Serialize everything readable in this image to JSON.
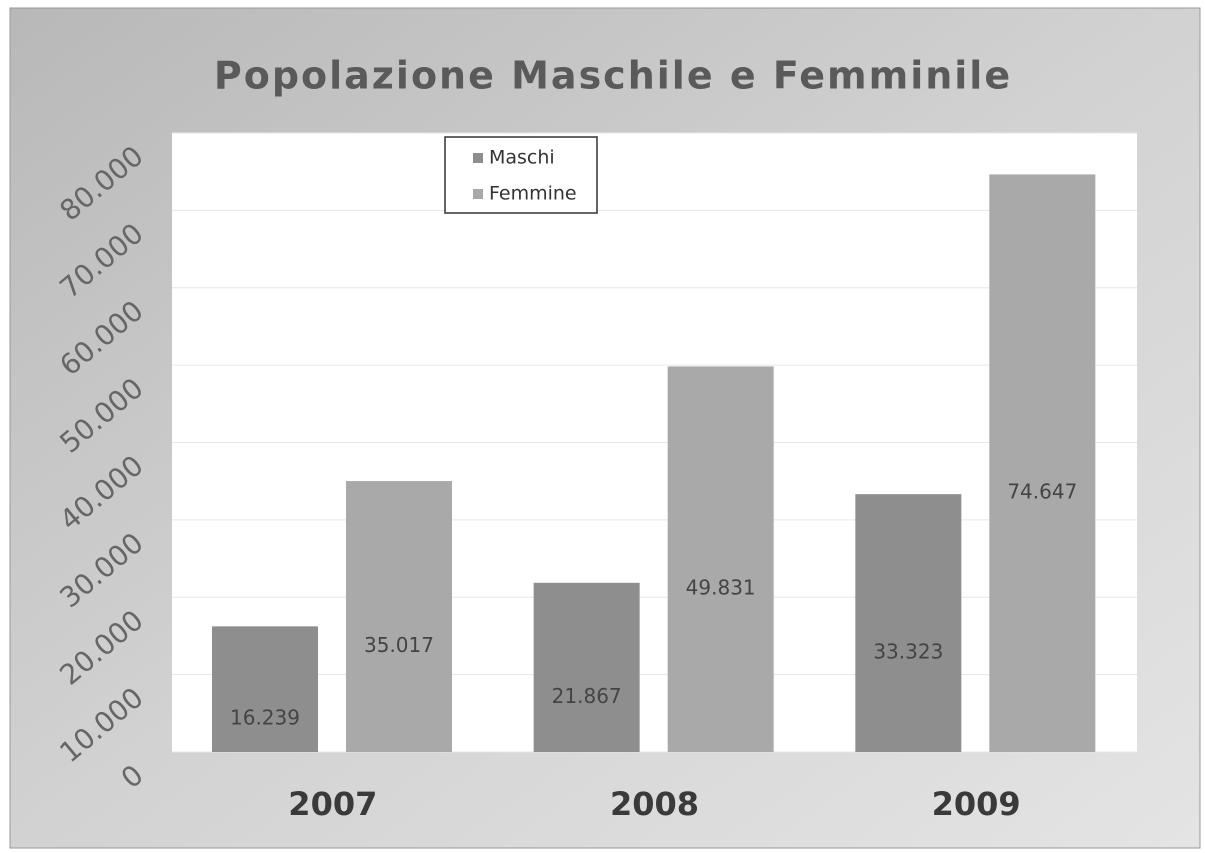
{
  "chart_data": {
    "type": "bar",
    "title": "Popolazione Maschile e Femminile",
    "categories": [
      "2007",
      "2008",
      "2009"
    ],
    "series": [
      {
        "name": "Maschi",
        "color": "#8e8e8e",
        "values": [
          16239,
          21867,
          33323
        ],
        "value_labels": [
          "16.239",
          "21.867",
          "33.323"
        ]
      },
      {
        "name": "Femmine",
        "color": "#a9a9a9",
        "values": [
          35017,
          49831,
          74647
        ],
        "value_labels": [
          "35.017",
          "49.831",
          "74.647"
        ]
      }
    ],
    "ylim": [
      0,
      80000
    ],
    "yticks": [
      0,
      {
        "value": 10000,
        "label": "10.000"
      },
      {
        "value": 20000,
        "label": "20.000"
      },
      {
        "value": 30000,
        "label": "30.000"
      },
      {
        "value": 40000,
        "label": "40.000"
      },
      {
        "value": 50000,
        "label": "50.000"
      },
      {
        "value": 60000,
        "label": "60.000"
      },
      {
        "value": 70000,
        "label": "70.000"
      },
      {
        "value": 80000,
        "label": "80.000"
      }
    ],
    "grid": true,
    "legend": "top"
  }
}
